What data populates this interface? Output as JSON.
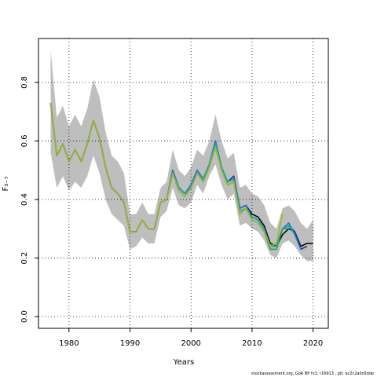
{
  "chart_data": {
    "type": "line",
    "xlabel": "Years",
    "ylabel": "F₃₋₇",
    "xlim": [
      1975,
      2022.5
    ],
    "ylim": [
      -0.04,
      0.95
    ],
    "xticks": [
      1980,
      1990,
      2000,
      2010,
      2020
    ],
    "yticks": [
      0.0,
      0.2,
      0.4,
      0.6,
      0.8
    ],
    "ytick_labels": [
      "0.0",
      "0.2",
      "0.4",
      "0.6",
      "0.8"
    ],
    "grid": true,
    "band_color": "#bebebe",
    "band": {
      "x": [
        1977,
        1978,
        1979,
        1980,
        1981,
        1982,
        1983,
        1984,
        1985,
        1986,
        1987,
        1988,
        1989,
        1990,
        1991,
        1992,
        1993,
        1994,
        1995,
        1996,
        1997,
        1998,
        1999,
        2000,
        2001,
        2002,
        2003,
        2004,
        2005,
        2006,
        2007,
        2008,
        2009,
        2010,
        2011,
        2012,
        2013,
        2014,
        2015,
        2016,
        2017,
        2018,
        2019,
        2020
      ],
      "upper": [
        0.91,
        0.68,
        0.72,
        0.65,
        0.69,
        0.65,
        0.71,
        0.81,
        0.75,
        0.63,
        0.55,
        0.53,
        0.49,
        0.35,
        0.35,
        0.39,
        0.35,
        0.35,
        0.44,
        0.46,
        0.57,
        0.5,
        0.48,
        0.51,
        0.57,
        0.55,
        0.6,
        0.69,
        0.6,
        0.54,
        0.56,
        0.44,
        0.45,
        0.42,
        0.41,
        0.38,
        0.32,
        0.3,
        0.37,
        0.38,
        0.36,
        0.32,
        0.3,
        0.33
      ],
      "lower": [
        0.56,
        0.44,
        0.48,
        0.43,
        0.46,
        0.44,
        0.48,
        0.55,
        0.49,
        0.4,
        0.35,
        0.33,
        0.31,
        0.23,
        0.24,
        0.27,
        0.25,
        0.25,
        0.34,
        0.36,
        0.44,
        0.38,
        0.37,
        0.39,
        0.45,
        0.42,
        0.48,
        0.52,
        0.45,
        0.4,
        0.42,
        0.31,
        0.32,
        0.3,
        0.29,
        0.26,
        0.21,
        0.2,
        0.25,
        0.26,
        0.24,
        0.21,
        0.19,
        0.19
      ]
    },
    "series": [
      {
        "color": "#0a0a0a",
        "x": [
          1977,
          1978,
          1979,
          1980,
          1981,
          1982,
          1983,
          1984,
          1985,
          1986,
          1987,
          1988,
          1989,
          1990,
          1991,
          1992,
          1993,
          1994,
          1995,
          1996,
          1997,
          1998,
          1999,
          2000,
          2001,
          2002,
          2003,
          2004,
          2005,
          2006,
          2007,
          2008,
          2009,
          2010,
          2011,
          2012,
          2013,
          2014,
          2015,
          2016,
          2017,
          2018,
          2019,
          2020
        ],
        "values": [
          0.73,
          0.55,
          0.59,
          0.53,
          0.57,
          0.53,
          0.59,
          0.67,
          0.61,
          0.51,
          0.44,
          0.42,
          0.39,
          0.29,
          0.29,
          0.33,
          0.3,
          0.3,
          0.39,
          0.4,
          0.49,
          0.44,
          0.42,
          0.44,
          0.49,
          0.47,
          0.52,
          0.59,
          0.51,
          0.46,
          0.47,
          0.37,
          0.38,
          0.35,
          0.34,
          0.31,
          0.25,
          0.24,
          0.28,
          0.3,
          0.29,
          0.24,
          0.25,
          0.25
        ]
      },
      {
        "color": "#2c2c8f",
        "x": [
          1977,
          1978,
          1979,
          1980,
          1981,
          1982,
          1983,
          1984,
          1985,
          1986,
          1987,
          1988,
          1989,
          1990,
          1991,
          1992,
          1993,
          1994,
          1995,
          1996,
          1997,
          1998,
          1999,
          2000,
          2001,
          2002,
          2003,
          2004,
          2005,
          2006,
          2007,
          2008,
          2009,
          2010,
          2011,
          2012,
          2013,
          2014,
          2015,
          2016,
          2017,
          2018,
          2019
        ],
        "values": [
          0.73,
          0.55,
          0.59,
          0.53,
          0.57,
          0.53,
          0.59,
          0.67,
          0.61,
          0.51,
          0.44,
          0.42,
          0.39,
          0.29,
          0.29,
          0.33,
          0.3,
          0.3,
          0.39,
          0.4,
          0.5,
          0.44,
          0.42,
          0.45,
          0.5,
          0.47,
          0.52,
          0.6,
          0.51,
          0.46,
          0.48,
          0.37,
          0.38,
          0.34,
          0.33,
          0.3,
          0.24,
          0.24,
          0.3,
          0.31,
          0.29,
          0.23,
          0.24
        ]
      },
      {
        "color": "#1f78d0",
        "x": [
          1977,
          1978,
          1979,
          1980,
          1981,
          1982,
          1983,
          1984,
          1985,
          1986,
          1987,
          1988,
          1989,
          1990,
          1991,
          1992,
          1993,
          1994,
          1995,
          1996,
          1997,
          1998,
          1999,
          2000,
          2001,
          2002,
          2003,
          2004,
          2005,
          2006,
          2007,
          2008,
          2009,
          2010,
          2011,
          2012,
          2013,
          2014,
          2015,
          2016,
          2017,
          2018
        ],
        "values": [
          0.73,
          0.55,
          0.59,
          0.53,
          0.57,
          0.53,
          0.59,
          0.67,
          0.61,
          0.51,
          0.44,
          0.42,
          0.39,
          0.29,
          0.29,
          0.33,
          0.3,
          0.3,
          0.39,
          0.4,
          0.5,
          0.44,
          0.42,
          0.45,
          0.5,
          0.47,
          0.52,
          0.6,
          0.51,
          0.46,
          0.47,
          0.37,
          0.38,
          0.34,
          0.33,
          0.3,
          0.24,
          0.24,
          0.3,
          0.32,
          0.28,
          0.23
        ]
      },
      {
        "color": "#17a8a8",
        "x": [
          1977,
          1978,
          1979,
          1980,
          1981,
          1982,
          1983,
          1984,
          1985,
          1986,
          1987,
          1988,
          1989,
          1990,
          1991,
          1992,
          1993,
          1994,
          1995,
          1996,
          1997,
          1998,
          1999,
          2000,
          2001,
          2002,
          2003,
          2004,
          2005,
          2006,
          2007,
          2008,
          2009,
          2010,
          2011,
          2012,
          2013,
          2014,
          2015,
          2016,
          2017
        ],
        "values": [
          0.73,
          0.55,
          0.59,
          0.53,
          0.57,
          0.53,
          0.59,
          0.67,
          0.61,
          0.51,
          0.44,
          0.42,
          0.39,
          0.29,
          0.29,
          0.33,
          0.3,
          0.3,
          0.39,
          0.4,
          0.49,
          0.44,
          0.42,
          0.44,
          0.49,
          0.47,
          0.52,
          0.59,
          0.51,
          0.46,
          0.47,
          0.36,
          0.37,
          0.34,
          0.33,
          0.3,
          0.24,
          0.24,
          0.3,
          0.31,
          0.28
        ]
      },
      {
        "color": "#2e9e4f",
        "x": [
          1977,
          1978,
          1979,
          1980,
          1981,
          1982,
          1983,
          1984,
          1985,
          1986,
          1987,
          1988,
          1989,
          1990,
          1991,
          1992,
          1993,
          1994,
          1995,
          1996,
          1997,
          1998,
          1999,
          2000,
          2001,
          2002,
          2003,
          2004,
          2005,
          2006,
          2007,
          2008,
          2009,
          2010,
          2011,
          2012,
          2013,
          2014,
          2015,
          2016
        ],
        "values": [
          0.73,
          0.55,
          0.59,
          0.53,
          0.57,
          0.53,
          0.59,
          0.67,
          0.61,
          0.51,
          0.44,
          0.42,
          0.39,
          0.29,
          0.29,
          0.33,
          0.3,
          0.3,
          0.39,
          0.4,
          0.49,
          0.43,
          0.41,
          0.44,
          0.49,
          0.46,
          0.51,
          0.58,
          0.5,
          0.45,
          0.46,
          0.35,
          0.37,
          0.33,
          0.32,
          0.29,
          0.23,
          0.23,
          0.3,
          0.3
        ]
      },
      {
        "color": "#9fb52a",
        "x": [
          1977,
          1978,
          1979,
          1980,
          1981,
          1982,
          1983,
          1984,
          1985,
          1986,
          1987,
          1988,
          1989,
          1990,
          1991,
          1992,
          1993,
          1994,
          1995,
          1996,
          1997,
          1998,
          1999,
          2000,
          2001,
          2002,
          2003,
          2004,
          2005,
          2006,
          2007,
          2008,
          2009,
          2010,
          2011,
          2012,
          2013,
          2014,
          2015
        ],
        "values": [
          0.73,
          0.55,
          0.59,
          0.53,
          0.57,
          0.53,
          0.59,
          0.67,
          0.61,
          0.51,
          0.44,
          0.42,
          0.39,
          0.29,
          0.29,
          0.33,
          0.3,
          0.3,
          0.39,
          0.4,
          0.49,
          0.43,
          0.41,
          0.44,
          0.49,
          0.46,
          0.51,
          0.58,
          0.5,
          0.45,
          0.46,
          0.35,
          0.37,
          0.33,
          0.32,
          0.29,
          0.24,
          0.25,
          0.35
        ]
      }
    ]
  },
  "footer": "stockassessment.org, GoR BP fv3, r16913 , git: ec2c2a0c6dde"
}
